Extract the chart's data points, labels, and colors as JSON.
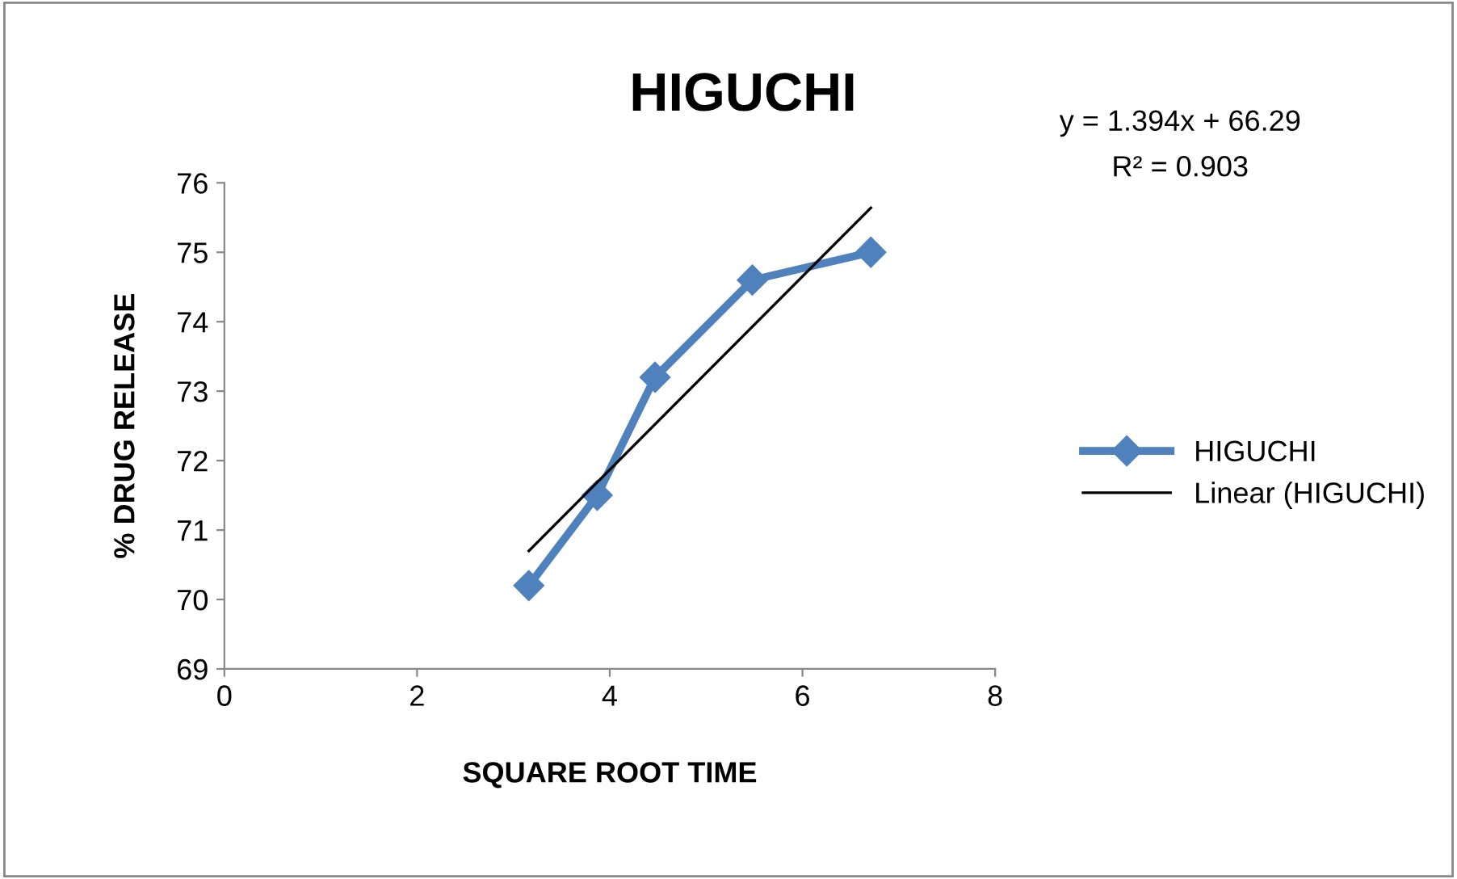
{
  "chart_data": {
    "type": "line",
    "title": "HIGUCHI",
    "xlabel": "SQUARE ROOT TIME",
    "ylabel": "% DRUG RELEASE",
    "x": [
      3.16,
      3.87,
      4.47,
      5.48,
      6.71
    ],
    "series": [
      {
        "name": "HIGUCHI",
        "color": "#4f81bd",
        "values": [
          70.2,
          71.5,
          73.2,
          74.6,
          75.0
        ],
        "marker": "diamond"
      },
      {
        "name": "Linear (HIGUCHI)",
        "color": "#000000",
        "type": "line",
        "x": [
          3.16,
          6.71
        ],
        "values": [
          70.7,
          75.64
        ],
        "marker": "none"
      }
    ],
    "annotations": [
      "y = 1.394x + 66.29",
      "R² = 0.903"
    ],
    "xlim": [
      0,
      8
    ],
    "xticks": [
      0,
      2,
      4,
      6,
      8
    ],
    "ylim": [
      69,
      76
    ],
    "yticks": [
      69,
      70,
      71,
      72,
      73,
      74,
      75,
      76
    ],
    "grid": false,
    "legend": "right"
  }
}
